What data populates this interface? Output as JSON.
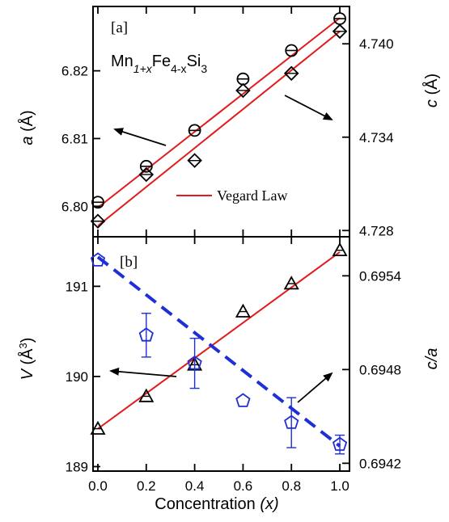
{
  "chart_data": [
    {
      "panel_label": "[a]",
      "type": "scatter",
      "x_axis": {
        "range": [
          0.0,
          1.0
        ]
      },
      "y_left": {
        "label_symbol": "a",
        "label_unit": "(Å)",
        "range": [
          6.7955,
          6.8295
        ],
        "ticks": [
          6.8,
          6.81,
          6.82
        ]
      },
      "y_right": {
        "label_symbol": "c",
        "label_unit": "(Å)",
        "range": [
          4.7276,
          4.7424
        ],
        "ticks": [
          4.728,
          4.734,
          4.74
        ]
      },
      "formula": {
        "base": "Mn",
        "sub1": "1+x",
        "mid": "Fe",
        "sub2": "4-x",
        "end": "Si",
        "sub3": "3"
      },
      "legend": [
        {
          "label": "Vegard Law",
          "color": "#e31a1c"
        }
      ],
      "series": [
        {
          "axis": "left",
          "marker": "circle",
          "x": [
            0.0,
            0.2,
            0.4,
            0.6,
            0.8,
            1.0
          ],
          "y": [
            6.8006,
            6.8059,
            6.8112,
            6.8188,
            6.823,
            6.8277
          ],
          "fit": [
            6.7998,
            6.8278
          ]
        },
        {
          "axis": "right",
          "marker": "diamond",
          "x": [
            0.0,
            0.2,
            0.4,
            0.6,
            0.8,
            1.0
          ],
          "y": [
            4.7286,
            4.7316,
            4.7325,
            4.737,
            4.7381,
            4.7408
          ],
          "fit": [
            4.7283,
            4.7408
          ]
        }
      ],
      "arrows": [
        {
          "points_to": "left"
        },
        {
          "points_to": "right"
        }
      ]
    },
    {
      "panel_label": "[b]",
      "type": "scatter",
      "x_axis": {
        "label": "Concentration",
        "label_var": "(x)",
        "range": [
          -0.02,
          1.04
        ],
        "ticks": [
          "0.0",
          "0.2",
          "0.4",
          "0.6",
          "0.8",
          "1.0"
        ]
      },
      "y_left": {
        "label_symbol": "V",
        "label_unit": "(Å",
        "label_sup": "3",
        "label_close": ")",
        "range": [
          188.95,
          191.55
        ],
        "ticks": [
          189,
          190,
          191
        ]
      },
      "y_right": {
        "label": "c/a",
        "range": [
          0.69415,
          0.69565
        ],
        "ticks": [
          0.6942,
          0.6948,
          0.6954
        ]
      },
      "series": [
        {
          "axis": "left",
          "marker": "triangle",
          "color": "#000000",
          "x": [
            0.0,
            0.2,
            0.4,
            0.6,
            0.8,
            1.0
          ],
          "y": [
            189.42,
            189.78,
            190.13,
            190.72,
            191.03,
            191.4
          ],
          "fit": [
            189.42,
            191.38
          ],
          "fit_color": "#e31a1c"
        },
        {
          "axis": "right",
          "marker": "pentagon",
          "color": "#1f2fd6",
          "x": [
            0.0,
            0.2,
            0.4,
            0.6,
            0.8,
            1.0
          ],
          "y": [
            0.6955,
            0.69502,
            0.69484,
            0.6946,
            0.69446,
            0.69432
          ],
          "err": [
            0.0,
            0.00014,
            0.00016,
            0.0,
            0.00016,
            6e-05
          ],
          "fit": [
            0.69552,
            0.69431
          ],
          "fit_color": "#1f2fd6",
          "fit_style": "dashed"
        }
      ],
      "arrows": [
        {
          "points_to": "left"
        },
        {
          "points_to": "right"
        }
      ]
    }
  ]
}
